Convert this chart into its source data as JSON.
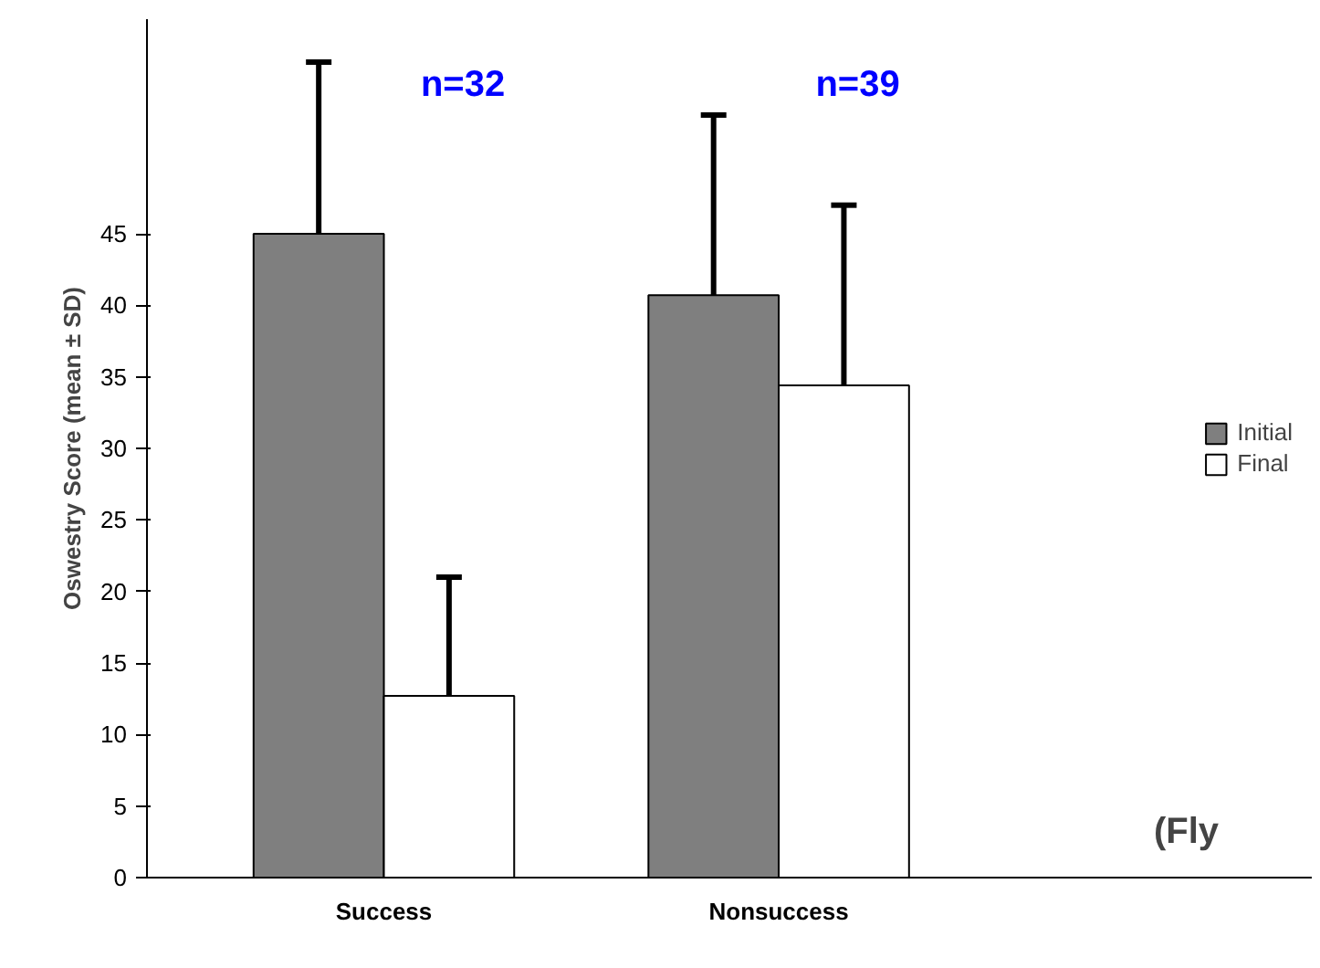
{
  "chart_data": {
    "type": "bar",
    "ylabel": "Oswestry Score (mean ± SD)",
    "categories": [
      "Success",
      "Nonsuccess"
    ],
    "series": [
      {
        "name": "Initial",
        "color": "#7f7f7f",
        "values": [
          45,
          40.7
        ],
        "errors": [
          12,
          12.6
        ]
      },
      {
        "name": "Final",
        "color": "#ffffff",
        "values": [
          12.7,
          34.4
        ],
        "errors": [
          8.3,
          12.6
        ]
      }
    ],
    "ylim": [
      0,
      60
    ],
    "yticks": [
      0,
      5,
      10,
      15,
      20,
      25,
      30,
      35,
      40,
      45
    ],
    "grid": false,
    "legend": "right",
    "annotations": [
      "n=32",
      "n=39",
      "(Fly"
    ]
  }
}
